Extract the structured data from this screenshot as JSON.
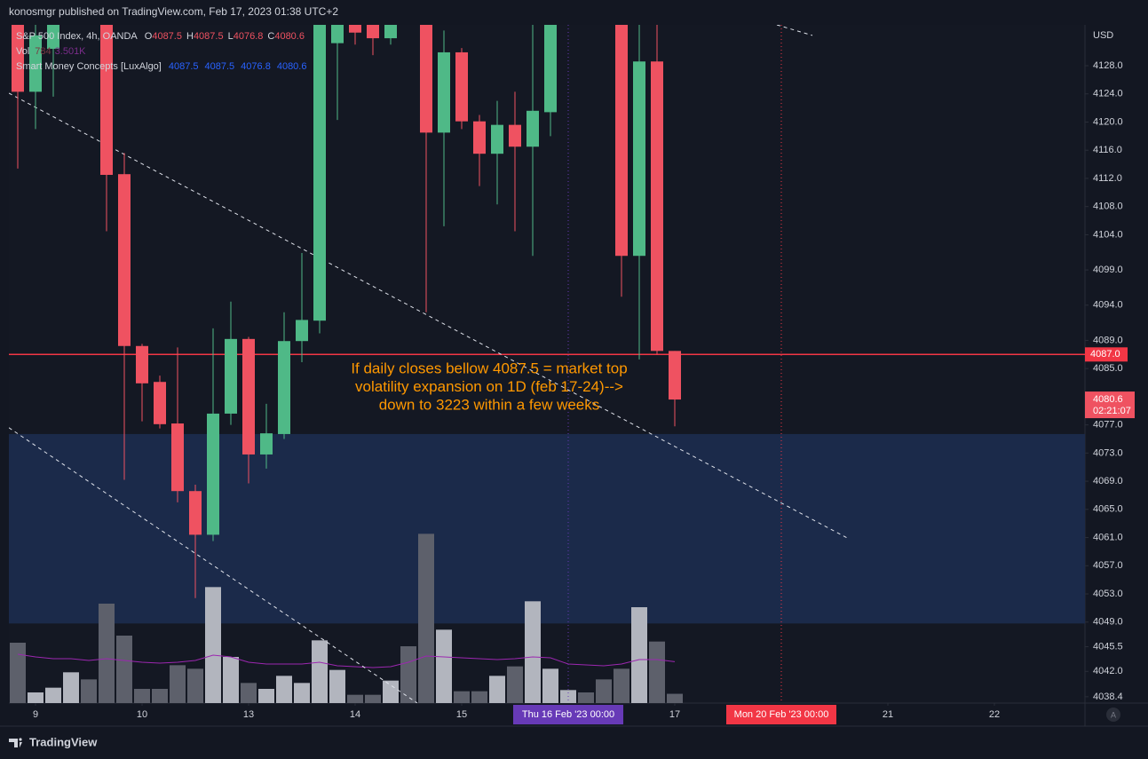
{
  "header": "konosmgr published on TradingView.com, Feb 17, 2023 01:38 UTC+2",
  "footer": "TradingView",
  "chart_data": {
    "type": "candlestick",
    "legend": {
      "symbol": "S&P 500 Index, 4h, OANDA",
      "ohlc_prefixes": [
        "O",
        "H",
        "L",
        "C"
      ],
      "volume_name": "Vol",
      "indicator": "Smart Money Concepts [LuxAlgo]"
    },
    "currency": "USD",
    "up_color": "#4fb987",
    "down_color": "#ef5261",
    "categories": [
      null,
      null,
      null,
      null,
      null,
      null,
      null,
      null,
      null,
      null,
      null,
      null,
      null,
      null,
      null,
      null,
      null,
      null,
      null,
      null,
      null,
      null,
      null,
      null,
      null,
      null,
      null,
      null,
      null,
      null,
      null,
      null,
      null,
      null,
      null,
      null,
      null,
      null
    ],
    "open": [
      4134.5,
      4124.3,
      4130.4,
      null,
      null,
      4136,
      4112.6,
      4088.2,
      4083.1,
      4077.2,
      4067.6,
      4061.4,
      4078.6,
      4089.2,
      4072.8,
      4075.7,
      4088.9,
      4091.8,
      4131.2,
      4135,
      4135,
      4131.9,
      null,
      4135,
      4118.5,
      4129.9,
      4120.1,
      4115.5,
      4119.6,
      4116.5,
      4121.4,
      null,
      null,
      null,
      4135,
      4101,
      4128.6,
      4087.5
    ],
    "high": [
      4135,
      4134,
      4136,
      null,
      null,
      4137,
      4115.6,
      4088.5,
      4084,
      4088,
      4068.5,
      4090.7,
      4094.5,
      4089.5,
      4080,
      4093,
      4101.4,
      4136,
      4136,
      4136,
      4136,
      4136,
      null,
      4136,
      4133,
      4130.5,
      4121,
      4123,
      4124.3,
      4134,
      4136,
      null,
      null,
      null,
      4136,
      4135,
      4135,
      4087.5
    ],
    "low": [
      4113.4,
      4119,
      4123.6,
      null,
      null,
      4104.5,
      4069.2,
      4077.5,
      4076.5,
      4066,
      4052.4,
      4060.5,
      4077,
      4068.7,
      4070.8,
      4075,
      4085.9,
      4090,
      4120.3,
      4131,
      4129.5,
      4131,
      null,
      4093,
      4105.2,
      4119,
      4110.9,
      4108.3,
      4104.5,
      4101,
      4118,
      null,
      null,
      null,
      4095.2,
      4086.3,
      4087,
      4076.8
    ],
    "close": [
      4124.3,
      4132.3,
      4135,
      null,
      null,
      4112.5,
      4088.2,
      4082.9,
      4077.1,
      4067.6,
      4061.4,
      4078.6,
      4089.2,
      4072.8,
      4075.8,
      4088.9,
      4091.9,
      4135,
      4135,
      4132.7,
      4131.9,
      4135,
      null,
      4118.5,
      4129.9,
      4120.1,
      4115.5,
      4119.6,
      4116.5,
      4121.6,
      4135,
      null,
      null,
      null,
      4101,
      4128.6,
      4087.5,
      4080.6
    ],
    "volume": {
      "values": [
        5100,
        900,
        1300,
        2600,
        2000,
        8400,
        5700,
        1200,
        1200,
        3200,
        2900,
        9800,
        3900,
        1700,
        1200,
        2300,
        1700,
        5300,
        2800,
        700,
        700,
        1900,
        4800,
        14300,
        6200,
        1000,
        1000,
        2300,
        3100,
        8600,
        2900,
        1100,
        900,
        2000,
        2900,
        8100,
        5200,
        784
      ],
      "direction": [
        "down",
        "up",
        "up",
        "up",
        "down",
        "down",
        "down",
        "down",
        "down",
        "down",
        "down",
        "up",
        "up",
        "down",
        "up",
        "up",
        "up",
        "up",
        "up",
        "down",
        "down",
        "up",
        "down",
        "down",
        "up",
        "down",
        "down",
        "up",
        "down",
        "up",
        "up",
        "up",
        "down",
        "down",
        "down",
        "up",
        "down",
        "down"
      ],
      "up_color": "#b2b5be",
      "down_color": "#5d606b",
      "ma": [
        4125,
        3900,
        3750,
        3750,
        3600,
        3750,
        3600,
        3450,
        3375,
        3450,
        3600,
        4050,
        3900,
        3450,
        3300,
        3300,
        3300,
        3450,
        3150,
        3075,
        3000,
        3075,
        3450,
        3975,
        3900,
        3825,
        3750,
        3675,
        3750,
        3900,
        3825,
        3300,
        3225,
        3150,
        3300,
        3675,
        3675,
        3501
      ],
      "ma_label": {
        "value": 3501,
        "label": "3.501K"
      },
      "ma_color": "#9c27b0",
      "ylim": [
        0,
        57300
      ]
    },
    "xlim": [
      -0.5,
      60.1
    ],
    "ylim": [
      4037.5,
      4133.8
    ],
    "xticks": [
      {
        "value": 1,
        "label": "9"
      },
      {
        "value": 7,
        "label": "10"
      },
      {
        "value": 13,
        "label": "13"
      },
      {
        "value": 19,
        "label": "14"
      },
      {
        "value": 25,
        "label": "15"
      },
      {
        "value": 37,
        "label": "17"
      },
      {
        "value": 49,
        "label": "21"
      },
      {
        "value": 55,
        "label": "22"
      }
    ],
    "yticks": [
      {
        "value": 4128,
        "label": "4128.0"
      },
      {
        "value": 4124,
        "label": "4124.0"
      },
      {
        "value": 4120,
        "label": "4120.0"
      },
      {
        "value": 4116,
        "label": "4116.0"
      },
      {
        "value": 4112,
        "label": "4112.0"
      },
      {
        "value": 4108,
        "label": "4108.0"
      },
      {
        "value": 4104,
        "label": "4104.0"
      },
      {
        "value": 4099,
        "label": "4099.0"
      },
      {
        "value": 4094,
        "label": "4094.0"
      },
      {
        "value": 4089,
        "label": "4089.0"
      },
      {
        "value": 4085,
        "label": "4085.0"
      },
      {
        "value": 4077,
        "label": "4077.0"
      },
      {
        "value": 4073,
        "label": "4073.0"
      },
      {
        "value": 4069,
        "label": "4069.0"
      },
      {
        "value": 4065,
        "label": "4065.0"
      },
      {
        "value": 4061,
        "label": "4061.0"
      },
      {
        "value": 4057,
        "label": "4057.0"
      },
      {
        "value": 4053,
        "label": "4053.0"
      },
      {
        "value": 4049,
        "label": "4049.0"
      },
      4045.5,
      {
        "value": 4042,
        "label": "4042.0"
      },
      4038.4
    ],
    "grid": false,
    "x_markers": [
      {
        "value": 31,
        "label": "Thu 16 Feb '23   00:00",
        "color": "#673ab7"
      },
      {
        "value": 43,
        "label": "Mon 20 Feb '23   00:00",
        "color": "#f23645"
      }
    ],
    "horizontal_line": {
      "value": 4087,
      "label": "4087.0",
      "color": "#f23645"
    },
    "countdown": "02:21:07",
    "zone": {
      "from": 4048.8,
      "to": 4075.7,
      "color": "#1b2a4a"
    },
    "trendlines": [
      {
        "x": [
          -0.5,
          46.75
        ],
        "y": [
          4124.1,
          4060.9
        ]
      },
      {
        "x": [
          -0.5,
          22.5
        ],
        "y": [
          4076.6,
          4037.5
        ]
      },
      {
        "x": [
          42.75,
          44.75
        ],
        "y": [
          4133.8,
          4132.3
        ]
      }
    ],
    "annotation": {
      "lines": [
        "If daily closes bellow 4087.5 = market top",
        "volatility expansion on 1D (feb 17-24)-->",
        "down to 3223 within a few weeks"
      ],
      "color": "#ff9800"
    }
  }
}
